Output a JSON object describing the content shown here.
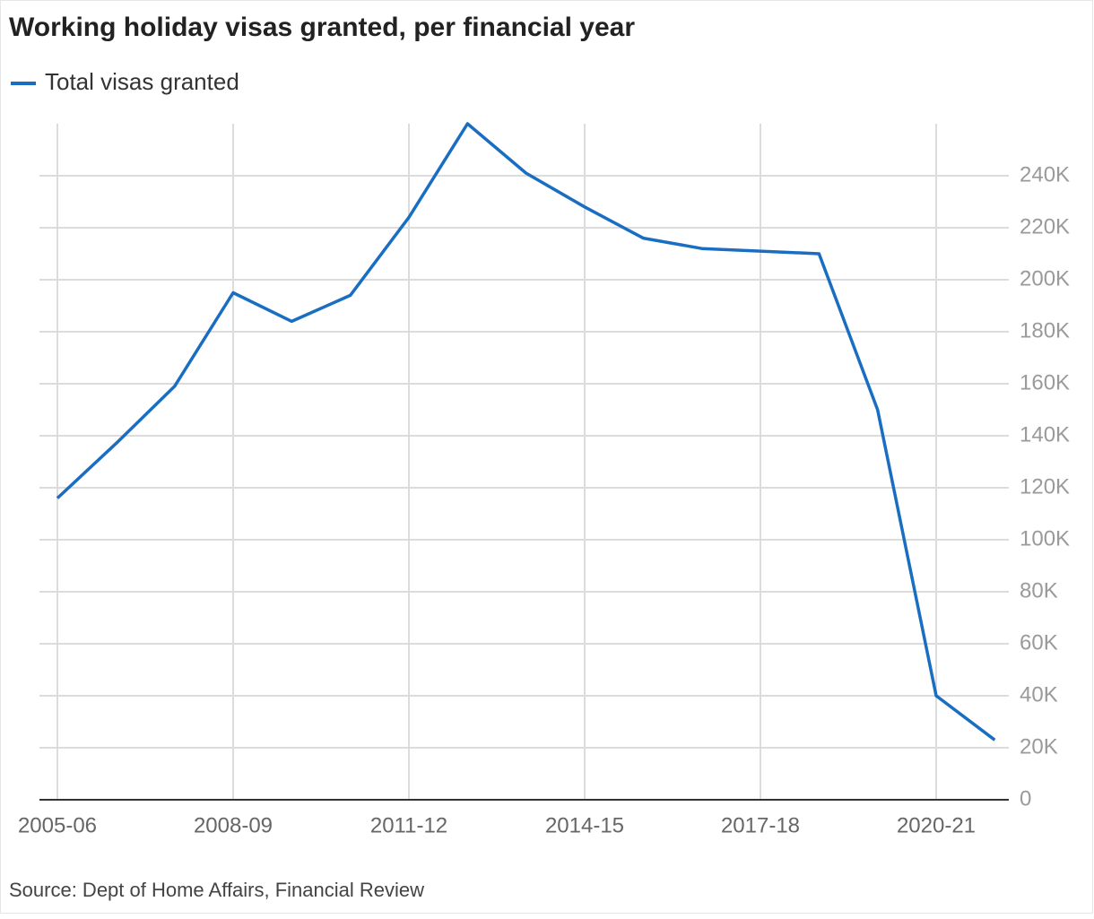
{
  "chart_data": {
    "type": "line",
    "title": "Working holiday visas granted, per financial year",
    "source": "Source: Dept of Home Affairs, Financial Review",
    "categories": [
      "2005-06",
      null,
      null,
      "2008-09",
      null,
      null,
      "2011-12",
      null,
      null,
      "2014-15",
      null,
      null,
      "2017-18",
      null,
      null,
      "2020-21",
      null
    ],
    "series": [
      {
        "name": "Total visas granted",
        "color": "#1a6ec2",
        "values": [
          116000,
          137000,
          159000,
          195000,
          184000,
          194000,
          224000,
          260000,
          241000,
          228000,
          216000,
          212000,
          211000,
          210000,
          150000,
          40000,
          23000
        ]
      }
    ],
    "ylim": [
      0,
      260000
    ],
    "yticks": [
      0,
      {
        "value": 20000,
        "label": "20K"
      },
      {
        "value": 40000,
        "label": "40K"
      },
      {
        "value": 60000,
        "label": "60K"
      },
      {
        "value": 80000,
        "label": "80K"
      },
      {
        "value": 100000,
        "label": "100K"
      },
      {
        "value": 120000,
        "label": "120K"
      },
      {
        "value": 140000,
        "label": "140K"
      },
      {
        "value": 160000,
        "label": "160K"
      },
      {
        "value": 180000,
        "label": "180K"
      },
      {
        "value": 200000,
        "label": "200K"
      },
      {
        "value": 220000,
        "label": "220K"
      },
      {
        "value": 240000,
        "label": "240K"
      }
    ],
    "grid": true
  }
}
